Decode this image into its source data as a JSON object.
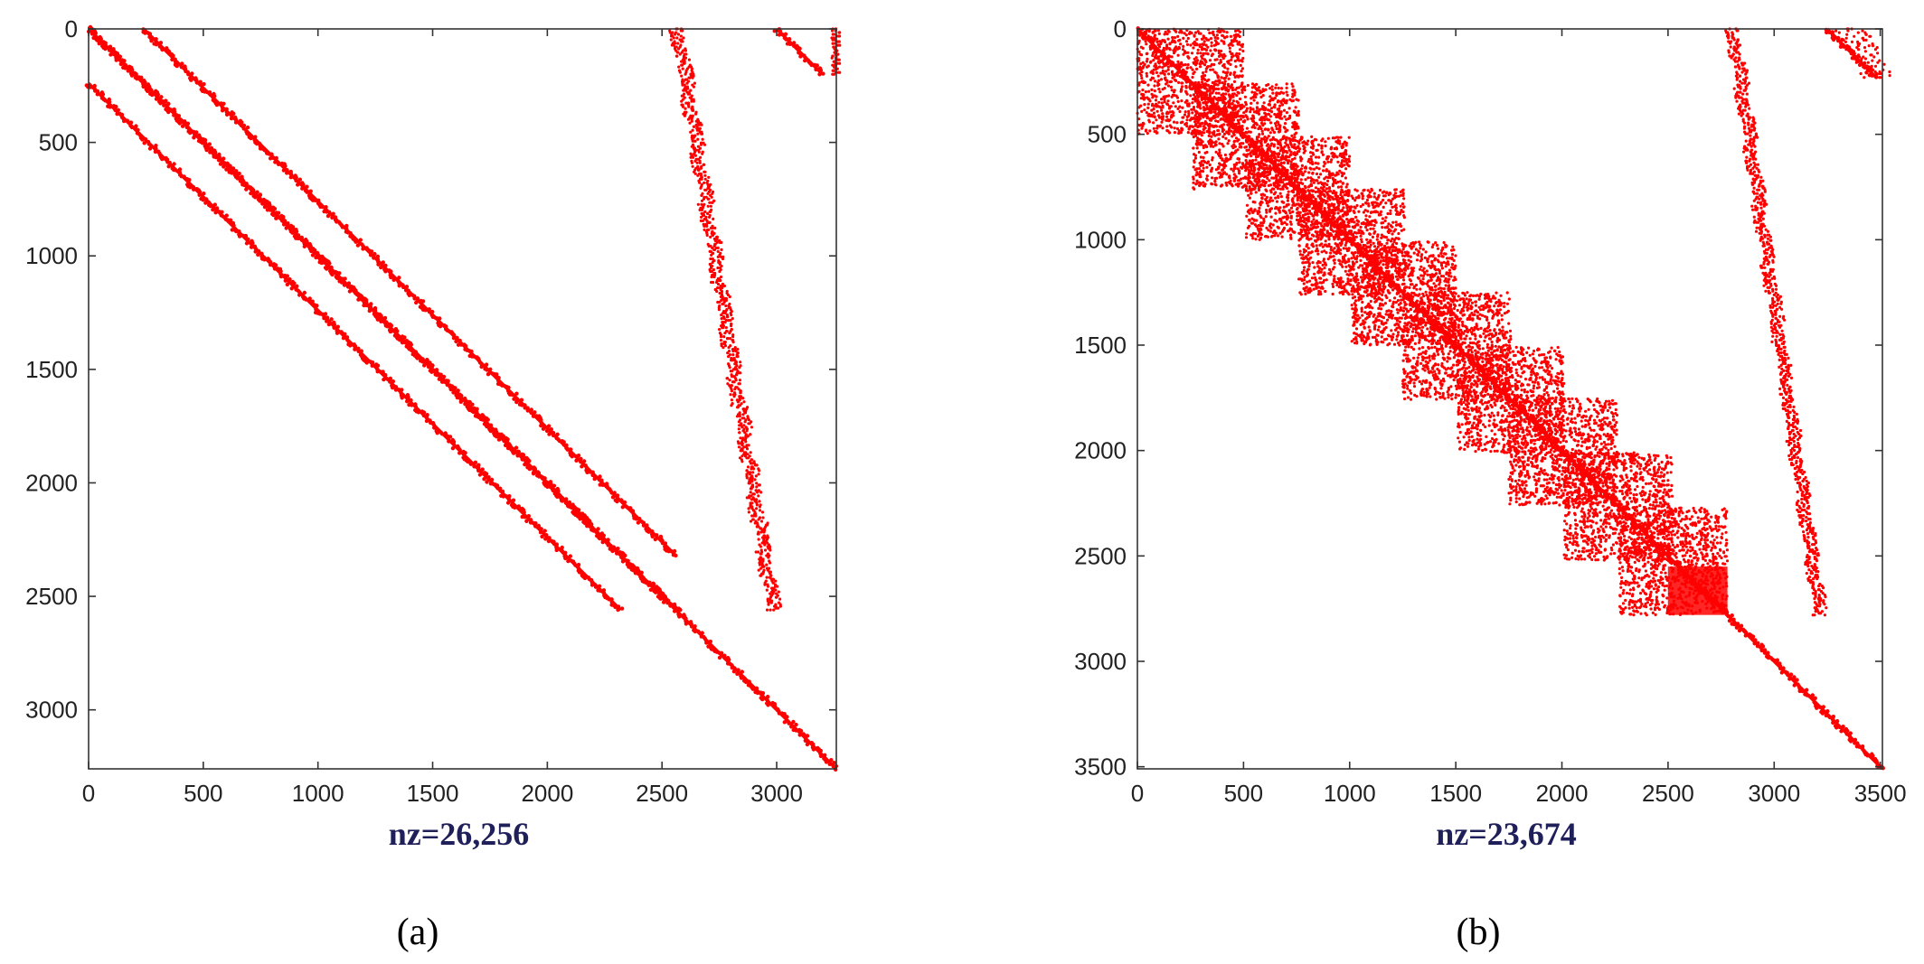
{
  "chart_data": [
    {
      "type": "scatter",
      "subtype": "sparsity-pattern",
      "panel": "(a)",
      "xlabel": "nz=26,256",
      "xlim": [
        0,
        3260
      ],
      "ylim": [
        0,
        3260
      ],
      "y_reversed": true,
      "xticks": [
        0,
        500,
        1000,
        1500,
        2000,
        2500,
        3000
      ],
      "yticks": [
        0,
        500,
        1000,
        1500,
        2000,
        2500,
        3000
      ],
      "color": "#ff0000",
      "segments": [
        {
          "x0": 0,
          "y0": 0,
          "x1": 3260,
          "y1": 3260
        },
        {
          "x0": 0,
          "y0": 0,
          "x1": 2560,
          "y1": 2560
        },
        {
          "x0": 240,
          "y0": 0,
          "x1": 2560,
          "y1": 2320
        },
        {
          "x0": 0,
          "y0": 240,
          "x1": 2320,
          "y1": 2560
        },
        {
          "x0": 3000,
          "y0": 0,
          "x1": 3200,
          "y1": 200
        }
      ],
      "bands": [
        {
          "x0": 2560,
          "x1": 2980,
          "y0": 0,
          "y1": 2560,
          "width": 60
        },
        {
          "x0": 3250,
          "x1": 3250,
          "y0": 0,
          "y1": 200,
          "width": 20
        }
      ]
    },
    {
      "type": "scatter",
      "subtype": "sparsity-pattern",
      "panel": "(b)",
      "xlabel": "nz=23,674",
      "xlim": [
        0,
        3510
      ],
      "ylim": [
        0,
        3510
      ],
      "y_reversed": true,
      "xticks": [
        0,
        500,
        1000,
        1500,
        2000,
        2500,
        3000,
        3500
      ],
      "yticks": [
        0,
        500,
        1000,
        1500,
        2000,
        2500,
        3000,
        3500
      ],
      "color": "#ff0000",
      "blocks": [
        {
          "x0": 0,
          "y0": 0,
          "x1": 500,
          "y1": 500
        },
        {
          "x0": 260,
          "y0": 260,
          "x1": 760,
          "y1": 760
        },
        {
          "x0": 510,
          "y0": 510,
          "x1": 1000,
          "y1": 1000
        },
        {
          "x0": 760,
          "y0": 760,
          "x1": 1260,
          "y1": 1260
        },
        {
          "x0": 1010,
          "y0": 1010,
          "x1": 1500,
          "y1": 1500
        },
        {
          "x0": 1250,
          "y0": 1250,
          "x1": 1760,
          "y1": 1760
        },
        {
          "x0": 1510,
          "y0": 1510,
          "x1": 2010,
          "y1": 2010
        },
        {
          "x0": 1750,
          "y0": 1750,
          "x1": 2260,
          "y1": 2260
        },
        {
          "x0": 2010,
          "y0": 2010,
          "x1": 2520,
          "y1": 2520
        },
        {
          "x0": 2270,
          "y0": 2270,
          "x1": 2780,
          "y1": 2780
        }
      ],
      "dense_blocks": [
        {
          "x0": 2270,
          "y0": 2270,
          "x1": 2780,
          "y1": 2780
        }
      ],
      "segments": [
        {
          "x0": 0,
          "y0": 0,
          "x1": 3510,
          "y1": 3510
        },
        {
          "x0": 3250,
          "y0": 0,
          "x1": 3480,
          "y1": 230
        }
      ],
      "bands": [
        {
          "x0": 2800,
          "x1": 3210,
          "y0": 0,
          "y1": 2780,
          "width": 60
        },
        {
          "x0": 3350,
          "x1": 3480,
          "y0": 0,
          "y1": 230,
          "width": 150
        }
      ]
    }
  ],
  "captions": [
    "(a)",
    "(b)"
  ]
}
